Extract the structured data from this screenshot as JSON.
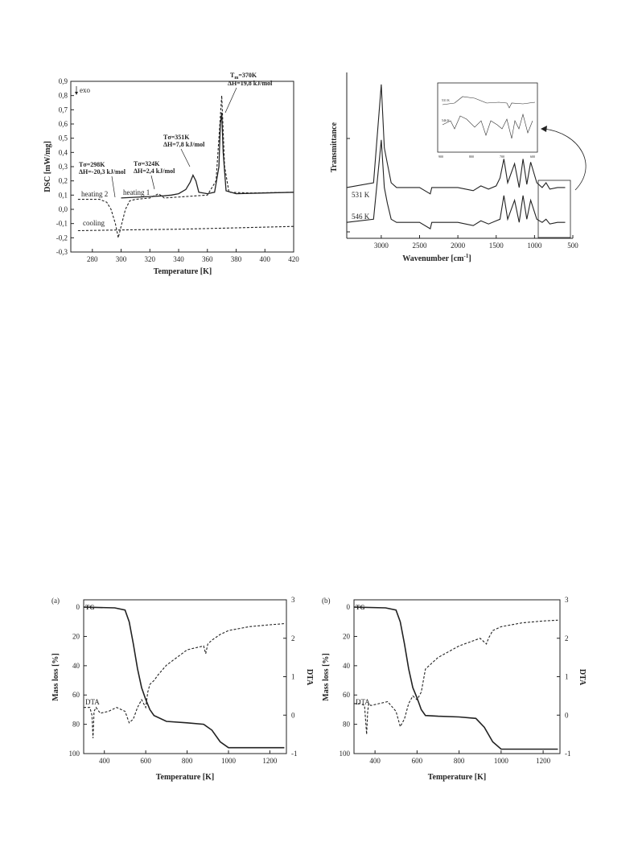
{
  "figures": [
    {
      "id": "dsc",
      "chart_data": {
        "type": "line",
        "xlabel": "Temperature [K]",
        "ylabel": "DSC [mW/mg]",
        "xlim": [
          265,
          420
        ],
        "ylim": [
          -0.3,
          0.9
        ],
        "xticks": [
          280,
          300,
          320,
          340,
          360,
          380,
          400,
          420
        ],
        "yticks": [
          -0.3,
          -0.2,
          -0.1,
          0.0,
          0.1,
          0.2,
          0.3,
          0.4,
          0.5,
          0.6,
          0.7,
          0.8,
          0.9
        ],
        "ytick_labels": [
          "-0,3",
          "-0,2",
          "-0,1",
          "0,0",
          "0,1",
          "0,2",
          "0,3",
          "0,4",
          "0,5",
          "0,6",
          "0,7",
          "0,8",
          "0,9"
        ],
        "xtick_labels": [
          "280",
          "300",
          "320",
          "340",
          "360",
          "380",
          "400",
          "420"
        ],
        "series": [
          {
            "name": "heating 1",
            "style": "solid",
            "x": [
              300,
              320,
              330,
              335,
              340,
              345,
              348,
              350,
              352,
              354,
              360,
              365,
              368,
              369,
              370,
              371,
              373,
              380,
              400,
              420
            ],
            "y": [
              0.08,
              0.09,
              0.095,
              0.1,
              0.11,
              0.14,
              0.19,
              0.24,
              0.2,
              0.12,
              0.11,
              0.12,
              0.3,
              0.6,
              0.68,
              0.4,
              0.13,
              0.11,
              0.115,
              0.12
            ]
          },
          {
            "name": "heating 2",
            "style": "dashed",
            "x": [
              270,
              285,
              290,
              293,
              296,
              298,
              300,
              303,
              306,
              310,
              320,
              326,
              330,
              345,
              360,
              366,
              368,
              370,
              372,
              375,
              390,
              420
            ],
            "y": [
              0.07,
              0.07,
              0.05,
              0.0,
              -0.1,
              -0.2,
              -0.12,
              0.0,
              0.06,
              0.07,
              0.08,
              0.11,
              0.08,
              0.09,
              0.1,
              0.2,
              0.5,
              0.8,
              0.3,
              0.12,
              0.115,
              0.12
            ]
          },
          {
            "name": "cooling",
            "style": "dashed",
            "x": [
              270,
              300,
              340,
              380,
              420
            ],
            "y": [
              -0.15,
              -0.145,
              -0.14,
              -0.13,
              -0.12
            ]
          }
        ],
        "annotations": [
          {
            "text1": "Tσ=298K",
            "text2": "ΔH=-20,3 kJ/mol"
          },
          {
            "text1": "Tσ=324K",
            "text2": "ΔH=2,4 kJ/mol"
          },
          {
            "text1": "Tσ=351K",
            "text2": "ΔH=7,8 kJ/mol"
          },
          {
            "text1": "T",
            "sub": "m",
            "text1b": "=370K",
            "text2": "ΔH=19,8 kJ/mol"
          }
        ],
        "exo_label": "exo"
      }
    },
    {
      "id": "ir",
      "chart_data": {
        "type": "line",
        "xlabel": "Wavenumber [cm",
        "xlabel_sup": "-1",
        "xlabel_end": "]",
        "ylabel": "Transmittance",
        "xlim": [
          3450,
          500
        ],
        "xticks": [
          3000,
          2500,
          2000,
          1500,
          1000,
          500
        ],
        "xtick_labels": [
          "3000",
          "2500",
          "2000",
          "1500",
          "1000",
          "500"
        ],
        "series": [
          {
            "name": "531 K",
            "x": [
              3450,
              3100,
              3000,
              2960,
              2920,
              2870,
              2800,
              2500,
              2360,
              2340,
              2300,
              2000,
              1800,
              1700,
              1600,
              1500,
              1450,
              1400,
              1350,
              1260,
              1200,
              1150,
              1100,
              1050,
              970,
              900,
              850,
              800,
              700,
              600
            ],
            "y": [
              0.3,
              0.33,
              0.95,
              0.55,
              0.45,
              0.33,
              0.3,
              0.3,
              0.26,
              0.3,
              0.3,
              0.3,
              0.28,
              0.31,
              0.29,
              0.31,
              0.36,
              0.48,
              0.33,
              0.45,
              0.3,
              0.48,
              0.32,
              0.46,
              0.33,
              0.3,
              0.33,
              0.29,
              0.3,
              0.3
            ]
          },
          {
            "name": "546 K",
            "x": [
              3450,
              3100,
              3000,
              2960,
              2920,
              2870,
              2800,
              2500,
              2360,
              2340,
              2300,
              2000,
              1800,
              1700,
              1600,
              1500,
              1450,
              1400,
              1350,
              1260,
              1200,
              1150,
              1100,
              1050,
              970,
              900,
              850,
              800,
              700,
              600
            ],
            "y": [
              0.08,
              0.1,
              0.6,
              0.3,
              0.2,
              0.1,
              0.08,
              0.08,
              0.04,
              0.08,
              0.08,
              0.08,
              0.06,
              0.09,
              0.07,
              0.09,
              0.1,
              0.25,
              0.1,
              0.22,
              0.08,
              0.25,
              0.1,
              0.22,
              0.1,
              0.08,
              0.1,
              0.07,
              0.08,
              0.08
            ]
          }
        ],
        "inset": {
          "xlim": [
            900,
            600
          ],
          "xticks": [
            900,
            800,
            700,
            600
          ],
          "xtick_labels": [
            "900",
            "800",
            "700",
            "600"
          ],
          "labels": [
            "531 K",
            "546 K"
          ]
        }
      }
    },
    {
      "id": "tga",
      "panel": "(a)",
      "chart_data": {
        "type": "line",
        "xlabel": "Temperature [K]",
        "ylabel": "Mass loss [%]",
        "y2label": "DTA",
        "xlim": [
          300,
          1280
        ],
        "ylim": [
          100,
          -5
        ],
        "y2lim": [
          -1,
          3
        ],
        "xticks": [
          400,
          600,
          800,
          1000,
          1200
        ],
        "yticks": [
          0,
          20,
          40,
          60,
          80,
          100
        ],
        "y2ticks": [
          -1,
          0,
          1,
          2,
          3
        ],
        "series": [
          {
            "name": "TG",
            "axis": "left",
            "style": "solid",
            "x": [
              300,
              450,
              500,
              520,
              540,
              560,
              580,
              600,
              620,
              640,
              700,
              800,
              880,
              920,
              960,
              1000,
              1100,
              1270
            ],
            "y": [
              0,
              0.5,
              2,
              10,
              25,
              42,
              55,
              63,
              70,
              74,
              78,
              79,
              80,
              84,
              92,
              96,
              96,
              96
            ]
          },
          {
            "name": "DTA",
            "axis": "right",
            "style": "dashed",
            "x": [
              300,
              330,
              340,
              345,
              350,
              360,
              380,
              420,
              460,
              500,
              520,
              540,
              560,
              580,
              600,
              610,
              620,
              640,
              660,
              700,
              800,
              880,
              890,
              900,
              920,
              960,
              1000,
              1100,
              1200,
              1270
            ],
            "y": [
              0.2,
              0.2,
              0.0,
              -0.6,
              0.1,
              0.2,
              0.05,
              0.1,
              0.2,
              0.1,
              -0.2,
              -0.1,
              0.2,
              0.4,
              0.2,
              0.6,
              0.8,
              0.9,
              1.05,
              1.3,
              1.7,
              1.8,
              1.6,
              1.85,
              1.95,
              2.1,
              2.2,
              2.3,
              2.35,
              2.38
            ]
          }
        ]
      }
    },
    {
      "id": "tgb",
      "panel": "(b)",
      "chart_data": {
        "type": "line",
        "xlabel": "Temperature [K]",
        "ylabel": "Mass loss [%]",
        "y2label": "DTA",
        "xlim": [
          300,
          1280
        ],
        "ylim": [
          100,
          -5
        ],
        "y2lim": [
          -1,
          3
        ],
        "xticks": [
          400,
          600,
          800,
          1000,
          1200
        ],
        "yticks": [
          0,
          20,
          40,
          60,
          80,
          100
        ],
        "y2ticks": [
          -1,
          0,
          1,
          2,
          3
        ],
        "series": [
          {
            "name": "TG",
            "axis": "left",
            "style": "solid",
            "x": [
              300,
              450,
              500,
              520,
              540,
              560,
              580,
              600,
              620,
              640,
              700,
              800,
              880,
              920,
              960,
              1000,
              1100,
              1270
            ],
            "y": [
              0,
              0.5,
              2,
              10,
              25,
              42,
              55,
              62,
              70,
              74,
              74.5,
              75,
              76,
              82,
              92,
              97,
              97,
              97
            ]
          },
          {
            "name": "DTA",
            "axis": "right",
            "style": "dashed",
            "x": [
              300,
              330,
              350,
              360,
              365,
              370,
              380,
              420,
              460,
              500,
              520,
              540,
              560,
              580,
              600,
              620,
              640,
              660,
              700,
              800,
              900,
              930,
              940,
              960,
              1000,
              1100,
              1200,
              1270
            ],
            "y": [
              0.3,
              0.3,
              0.25,
              -0.5,
              0.1,
              0.3,
              0.25,
              0.3,
              0.35,
              0.1,
              -0.3,
              -0.1,
              0.3,
              0.5,
              0.4,
              0.6,
              1.2,
              1.3,
              1.5,
              1.8,
              2.0,
              1.85,
              2.0,
              2.2,
              2.3,
              2.4,
              2.45,
              2.47
            ]
          }
        ]
      }
    }
  ]
}
